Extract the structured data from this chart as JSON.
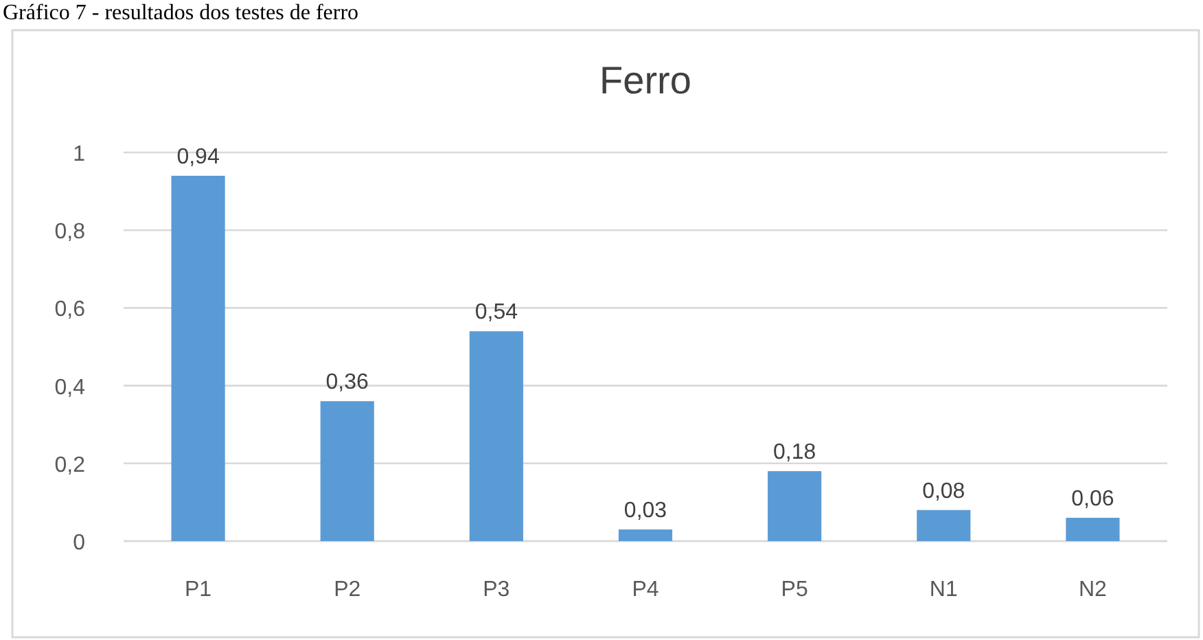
{
  "chart_data": {
    "type": "bar",
    "title": "Ferro",
    "annotations": [
      "Gráfico 7 - resultados dos testes de ferro"
    ],
    "categories": [
      "P1",
      "P2",
      "P3",
      "P4",
      "P5",
      "N1",
      "N2"
    ],
    "values": [
      0.94,
      0.36,
      0.54,
      0.03,
      0.18,
      0.08,
      0.06
    ],
    "value_labels": [
      "0,94",
      "0,36",
      "0,54",
      "0,03",
      "0,18",
      "0,08",
      "0,06"
    ],
    "color": "#5b9bd5",
    "ylim": [
      0,
      1
    ],
    "yticks": [
      0,
      {
        "value": 0.2,
        "label": "0,2"
      },
      {
        "value": 0.4,
        "label": "0,4"
      },
      {
        "value": 0.6,
        "label": "0,6"
      },
      {
        "value": 0.8,
        "label": "0,8"
      },
      1
    ],
    "grid": "y"
  }
}
